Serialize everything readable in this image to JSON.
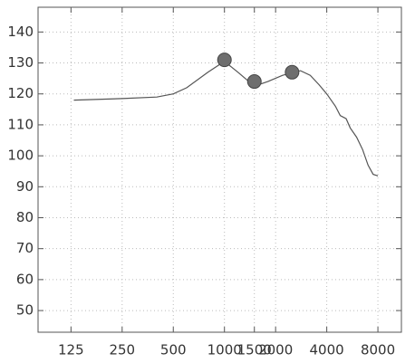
{
  "chart_data": {
    "type": "line",
    "log_x": true,
    "grid": true,
    "xlim": [
      80,
      11000
    ],
    "xticks": [
      125,
      250,
      500,
      1000,
      1500,
      2000,
      4000,
      8000
    ],
    "ylim": [
      43,
      148
    ],
    "yticks": [
      50,
      60,
      70,
      80,
      90,
      100,
      110,
      120,
      130,
      140
    ],
    "series": [
      {
        "color": "#555555",
        "x": [
          130,
          250,
          400,
          500,
          600,
          800,
          1000,
          1200,
          1500,
          1800,
          2200,
          2800,
          3200,
          3600,
          4000,
          4500,
          4800,
          5200,
          5500,
          6000,
          6500,
          7000,
          7500,
          8000
        ],
        "values": [
          118,
          118.5,
          119,
          120,
          122,
          127,
          130.5,
          127,
          122.5,
          124,
          126,
          127.5,
          126,
          123,
          120,
          116,
          113,
          112,
          109,
          106,
          102,
          97,
          94,
          93.5
        ]
      }
    ],
    "markers": {
      "color": "#6e6e6e",
      "x": [
        1000,
        1500,
        2500
      ],
      "values": [
        131,
        124,
        127
      ]
    }
  }
}
